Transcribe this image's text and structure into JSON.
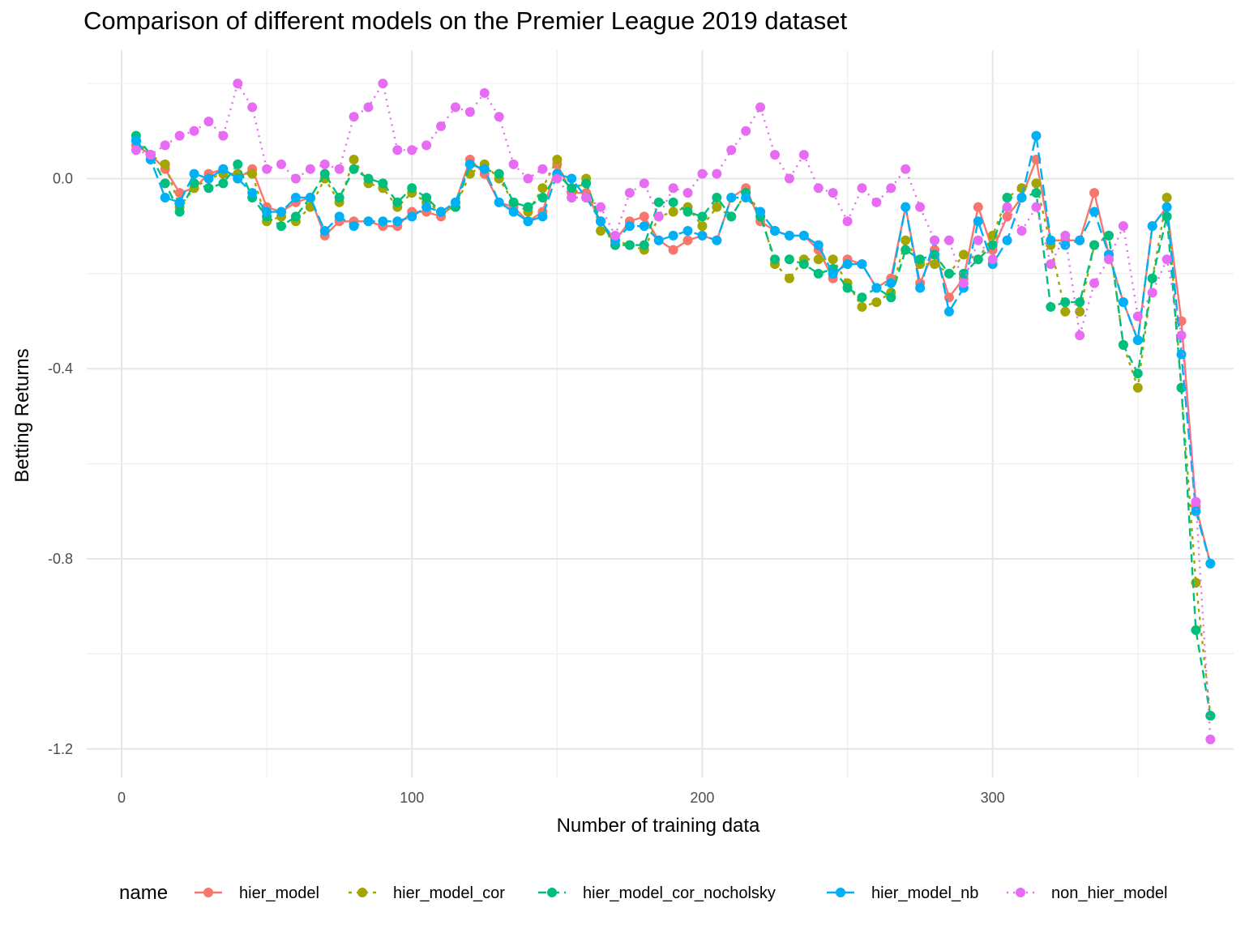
{
  "chart_data": {
    "type": "line",
    "title": "Comparison of different models on the Premier League 2019 dataset",
    "xlabel": "Number of training data",
    "ylabel": "Betting Returns",
    "xlim": [
      -12,
      383
    ],
    "ylim": [
      -1.26,
      0.27
    ],
    "x_ticks": [
      0,
      100,
      200,
      300
    ],
    "x_tick_labels": [
      "0",
      "100",
      "200",
      "300"
    ],
    "y_ticks": [
      0.0,
      -0.4,
      -0.8,
      -1.2
    ],
    "y_tick_labels": [
      "0.0",
      "-0.4",
      "-0.8",
      "-1.2"
    ],
    "grid": true,
    "legend": {
      "title": "name",
      "position": "bottom"
    },
    "x": [
      5,
      10,
      15,
      20,
      25,
      30,
      35,
      40,
      45,
      50,
      55,
      60,
      65,
      70,
      75,
      80,
      85,
      90,
      95,
      100,
      105,
      110,
      115,
      120,
      125,
      130,
      135,
      140,
      145,
      150,
      155,
      160,
      165,
      170,
      175,
      180,
      185,
      190,
      195,
      200,
      205,
      210,
      215,
      220,
      225,
      230,
      235,
      240,
      245,
      250,
      255,
      260,
      265,
      270,
      275,
      280,
      285,
      290,
      295,
      300,
      305,
      310,
      315,
      320,
      325,
      330,
      335,
      340,
      345,
      350,
      355,
      360,
      365,
      370,
      375
    ],
    "series": [
      {
        "name": "hier_model",
        "color": "#F8766D",
        "dash": "none",
        "values": [
          0.07,
          0.05,
          0.02,
          -0.03,
          -0.02,
          0.01,
          0.02,
          0.0,
          0.02,
          -0.06,
          -0.07,
          -0.05,
          -0.04,
          -0.12,
          -0.09,
          -0.09,
          -0.09,
          -0.1,
          -0.1,
          -0.07,
          -0.07,
          -0.08,
          -0.05,
          0.04,
          0.01,
          -0.05,
          -0.06,
          -0.09,
          -0.07,
          0.03,
          -0.03,
          -0.03,
          -0.09,
          -0.13,
          -0.09,
          -0.08,
          -0.13,
          -0.15,
          -0.13,
          -0.12,
          -0.13,
          -0.04,
          -0.02,
          -0.09,
          -0.11,
          -0.12,
          -0.12,
          -0.15,
          -0.21,
          -0.17,
          -0.18,
          -0.23,
          -0.21,
          -0.06,
          -0.22,
          -0.15,
          -0.25,
          -0.21,
          -0.06,
          -0.15,
          -0.08,
          -0.04,
          0.04,
          -0.13,
          -0.13,
          -0.13,
          -0.03,
          -0.16,
          -0.26,
          -0.34,
          -0.1,
          -0.06,
          -0.3,
          -0.69,
          -0.81
        ]
      },
      {
        "name": "hier_model_cor",
        "color": "#A3A500",
        "dash": "4,6",
        "values": [
          0.08,
          0.05,
          0.03,
          -0.06,
          -0.02,
          0.0,
          0.01,
          0.01,
          0.01,
          -0.09,
          -0.08,
          -0.09,
          -0.06,
          0.0,
          -0.05,
          0.04,
          -0.01,
          -0.02,
          -0.06,
          -0.03,
          -0.05,
          -0.07,
          -0.06,
          0.01,
          0.03,
          0.0,
          -0.05,
          -0.07,
          -0.02,
          0.04,
          -0.04,
          0.0,
          -0.11,
          -0.13,
          -0.14,
          -0.15,
          -0.08,
          -0.07,
          -0.06,
          -0.1,
          -0.06,
          -0.08,
          -0.03,
          -0.07,
          -0.18,
          -0.21,
          -0.17,
          -0.17,
          -0.17,
          -0.22,
          -0.27,
          -0.26,
          -0.24,
          -0.13,
          -0.18,
          -0.18,
          -0.2,
          -0.16,
          -0.17,
          -0.12,
          -0.04,
          -0.02,
          -0.01,
          -0.14,
          -0.28,
          -0.28,
          -0.14,
          -0.12,
          -0.35,
          -0.44,
          -0.21,
          -0.04,
          -0.44,
          -0.85,
          -1.13
        ]
      },
      {
        "name": "hier_model_cor_nocholsky",
        "color": "#00BF7D",
        "dash": "10,6",
        "values": [
          0.09,
          0.05,
          -0.01,
          -0.07,
          -0.01,
          -0.02,
          -0.01,
          0.03,
          -0.04,
          -0.08,
          -0.1,
          -0.08,
          -0.04,
          0.01,
          -0.04,
          0.02,
          0.0,
          -0.01,
          -0.05,
          -0.02,
          -0.04,
          -0.07,
          -0.06,
          0.03,
          0.02,
          0.01,
          -0.05,
          -0.06,
          -0.04,
          0.01,
          -0.02,
          -0.01,
          -0.09,
          -0.14,
          -0.14,
          -0.14,
          -0.05,
          -0.05,
          -0.07,
          -0.08,
          -0.04,
          -0.08,
          -0.03,
          -0.08,
          -0.17,
          -0.17,
          -0.18,
          -0.2,
          -0.19,
          -0.23,
          -0.25,
          -0.23,
          -0.25,
          -0.15,
          -0.17,
          -0.16,
          -0.2,
          -0.2,
          -0.17,
          -0.14,
          -0.04,
          -0.04,
          -0.03,
          -0.27,
          -0.26,
          -0.26,
          -0.14,
          -0.12,
          -0.35,
          -0.41,
          -0.21,
          -0.08,
          -0.44,
          -0.95,
          -1.13
        ]
      },
      {
        "name": "hier_model_nb",
        "color": "#00B0F6",
        "dash": "14,6",
        "values": [
          0.08,
          0.04,
          -0.04,
          -0.05,
          0.01,
          0.0,
          0.02,
          0.0,
          -0.03,
          -0.07,
          -0.07,
          -0.04,
          -0.04,
          -0.11,
          -0.08,
          -0.1,
          -0.09,
          -0.09,
          -0.09,
          -0.08,
          -0.06,
          -0.07,
          -0.05,
          0.03,
          0.02,
          -0.05,
          -0.07,
          -0.09,
          -0.08,
          0.01,
          0.0,
          -0.04,
          -0.09,
          -0.13,
          -0.1,
          -0.1,
          -0.13,
          -0.12,
          -0.11,
          -0.12,
          -0.13,
          -0.04,
          -0.04,
          -0.07,
          -0.11,
          -0.12,
          -0.12,
          -0.14,
          -0.2,
          -0.18,
          -0.18,
          -0.23,
          -0.22,
          -0.06,
          -0.23,
          -0.13,
          -0.28,
          -0.23,
          -0.09,
          -0.18,
          -0.13,
          -0.04,
          0.09,
          -0.13,
          -0.14,
          -0.13,
          -0.07,
          -0.16,
          -0.26,
          -0.34,
          -0.1,
          -0.06,
          -0.37,
          -0.7,
          -0.81
        ]
      },
      {
        "name": "non_hier_model",
        "color": "#E76BF3",
        "dash": "2,6",
        "values": [
          0.06,
          0.05,
          0.07,
          0.09,
          0.1,
          0.12,
          0.09,
          0.2,
          0.15,
          0.02,
          0.03,
          0.0,
          0.02,
          0.03,
          0.02,
          0.13,
          0.15,
          0.2,
          0.06,
          0.06,
          0.07,
          0.11,
          0.15,
          0.14,
          0.18,
          0.13,
          0.03,
          0.0,
          0.02,
          0.0,
          -0.04,
          -0.04,
          -0.06,
          -0.12,
          -0.03,
          -0.01,
          -0.08,
          -0.02,
          -0.03,
          0.01,
          0.01,
          0.06,
          0.1,
          0.15,
          0.05,
          0.0,
          0.05,
          -0.02,
          -0.03,
          -0.09,
          -0.02,
          -0.05,
          -0.02,
          0.02,
          -0.06,
          -0.13,
          -0.13,
          -0.22,
          -0.13,
          -0.17,
          -0.06,
          -0.11,
          -0.06,
          -0.18,
          -0.12,
          -0.33,
          -0.22,
          -0.17,
          -0.1,
          -0.29,
          -0.24,
          -0.17,
          -0.33,
          -0.68,
          -1.18
        ]
      }
    ]
  }
}
